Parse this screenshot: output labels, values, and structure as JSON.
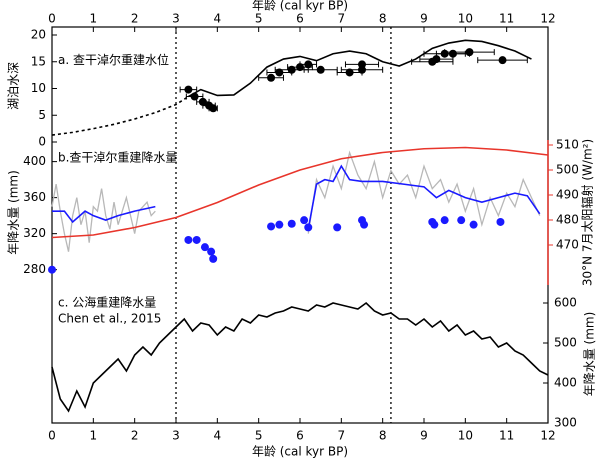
{
  "chart_data": [
    {
      "type": "line",
      "title": "a. 查干淖尔重建水位",
      "x_label": "年龄 (cal kyr BP)",
      "x_axis": "top",
      "y_label": "湖泊水深",
      "y_axis_side": "left",
      "xlim": [
        0,
        12
      ],
      "xticks": [
        0,
        1,
        2,
        3,
        4,
        5,
        6,
        7,
        8,
        9,
        10,
        11,
        12
      ],
      "ylim": [
        0,
        21
      ],
      "yticks": [
        0,
        5,
        10,
        15,
        20
      ],
      "vlines": [
        3,
        8.2
      ],
      "series": [
        {
          "style": "dashed",
          "color": "#000000",
          "x": [
            0,
            0.5,
            1,
            1.5,
            2,
            2.5,
            3,
            3.3
          ],
          "values": [
            1.3,
            1.8,
            2.5,
            3.3,
            4.3,
            5.5,
            7,
            8.5
          ]
        },
        {
          "style": "solid",
          "color": "#000000",
          "x": [
            3.3,
            3.6,
            4.0,
            4.4,
            4.8,
            5.2,
            5.6,
            6.0,
            6.4,
            6.8,
            7.2,
            7.6,
            8.0,
            8.4,
            8.8,
            9.2,
            9.6,
            10.0,
            10.4,
            10.8,
            11.2,
            11.6
          ],
          "values": [
            8.5,
            9.8,
            8.7,
            8.8,
            11,
            14,
            15.5,
            16,
            15.2,
            16.5,
            17,
            16.5,
            15,
            14.2,
            15.5,
            17.5,
            18.5,
            19,
            18.8,
            18,
            17,
            15.5
          ]
        },
        {
          "style": "points",
          "color": "#000000",
          "x": [
            3.3,
            3.45,
            3.65,
            3.8,
            3.9,
            5.3,
            5.5,
            5.8,
            6.0,
            6.2,
            6.5,
            7.2,
            7.5,
            7.5,
            9.2,
            9.3,
            9.5,
            9.7,
            10.1,
            10.9
          ],
          "values": [
            9.8,
            8.5,
            7.5,
            6.8,
            6.3,
            12,
            13,
            13.5,
            14,
            14.5,
            13.5,
            13,
            14.5,
            13.5,
            15,
            15.5,
            16.5,
            16.5,
            16.8,
            15.3
          ],
          "xerr": [
            0.2,
            0.2,
            0.15,
            0.15,
            0.1,
            0.3,
            0.3,
            0.4,
            0.3,
            0.2,
            0.4,
            0.3,
            0.4,
            0.5,
            0.5,
            0.4,
            0.5,
            0.4,
            0.6,
            0.6
          ]
        }
      ]
    },
    {
      "type": "line",
      "title": "b.查干淖尔重建降水量",
      "y_label": "年降水量 (mm)",
      "y2_label": "30°N 7月太阳辐射 (W/m²)",
      "y_axis_side": "left",
      "xlim": [
        0,
        12
      ],
      "ylim": [
        263,
        424
      ],
      "yticks": [
        280,
        320,
        360,
        400
      ],
      "y2lim": [
        454,
        512
      ],
      "y2ticks": [
        470,
        480,
        490,
        500,
        510
      ],
      "series": [
        {
          "style": "solid",
          "color": "#b8b8b8",
          "x": [
            0,
            0.1,
            0.2,
            0.3,
            0.4,
            0.5,
            0.6,
            0.7,
            0.8,
            0.9,
            1.0,
            1.1,
            1.2,
            1.3,
            1.4,
            1.5,
            1.6,
            1.7,
            1.8,
            1.9,
            2.0,
            2.1,
            2.2,
            2.3,
            2.4,
            2.5,
            4.0,
            6.2,
            6.4,
            6.6,
            6.8,
            7.0,
            7.2,
            7.4,
            7.6,
            7.8,
            8.0,
            8.2,
            8.4,
            8.6,
            8.8,
            9.0,
            9.2,
            9.4,
            9.6,
            9.8,
            10.0,
            10.2,
            10.4,
            10.6,
            10.8,
            11.0,
            11.2,
            11.4,
            11.6,
            11.8
          ],
          "values": [
            350,
            375,
            345,
            320,
            300,
            340,
            360,
            330,
            345,
            310,
            350,
            345,
            370,
            340,
            325,
            355,
            330,
            345,
            360,
            340,
            320,
            345,
            350,
            355,
            340,
            345,
            null,
            320,
            380,
            360,
            395,
            370,
            410,
            385,
            370,
            400,
            360,
            390,
            375,
            385,
            360,
            395,
            370,
            380,
            355,
            375,
            345,
            370,
            330,
            360,
            340,
            365,
            350,
            380,
            360,
            340
          ]
        },
        {
          "style": "solid",
          "color": "#1a1aff",
          "x": [
            0,
            0.3,
            0.5,
            0.8,
            1.0,
            1.3,
            1.6,
            2.0,
            2.5,
            4.0,
            6.2,
            6.4,
            6.6,
            6.8,
            7.0,
            7.2,
            7.5,
            8.0,
            8.5,
            9.0,
            9.3,
            9.6,
            10.0,
            10.4,
            10.8,
            11.2,
            11.5,
            11.8
          ],
          "values": [
            345,
            345,
            333,
            345,
            340,
            335,
            340,
            345,
            350,
            null,
            325,
            375,
            380,
            378,
            395,
            380,
            378,
            378,
            375,
            372,
            360,
            368,
            360,
            355,
            360,
            365,
            362,
            342
          ]
        },
        {
          "style": "points",
          "color": "#1a1aff",
          "x": [
            0,
            3.3,
            3.5,
            3.7,
            3.85,
            3.9,
            5.3,
            5.5,
            5.8,
            6.1,
            6.2,
            6.9,
            7.5,
            7.55,
            9.2,
            9.25,
            9.5,
            9.9,
            10.2,
            10.85
          ],
          "values": [
            280,
            313,
            313,
            305,
            300,
            292,
            328,
            330,
            331,
            335,
            327,
            327,
            335,
            330,
            333,
            330,
            335,
            335,
            330,
            333
          ]
        },
        {
          "style": "solid",
          "color": "#e8352b",
          "axis": "y2",
          "x": [
            0,
            1,
            2,
            3,
            4,
            5,
            6,
            7,
            8,
            9,
            10,
            11,
            12
          ],
          "values": [
            473,
            474,
            477,
            481,
            487,
            494,
            500,
            504.5,
            507,
            508.5,
            509,
            508,
            506
          ]
        }
      ]
    },
    {
      "type": "line",
      "title": "c. 公海重建降水量",
      "subtitle": "Chen et al., 2015",
      "x_label": "年龄 (cal kyr BP)",
      "x_axis": "bottom",
      "y_label": "年降水量 (mm)",
      "y_axis_side": "right",
      "xlim": [
        0,
        12
      ],
      "xticks": [
        0,
        1,
        2,
        3,
        4,
        5,
        6,
        7,
        8,
        9,
        10,
        11,
        12
      ],
      "ylim": [
        300,
        645
      ],
      "yticks": [
        300,
        400,
        500,
        600
      ],
      "series": [
        {
          "style": "solid",
          "color": "#000000",
          "x": [
            0,
            0.2,
            0.4,
            0.6,
            0.8,
            1.0,
            1.2,
            1.4,
            1.6,
            1.8,
            2.0,
            2.2,
            2.4,
            2.6,
            2.8,
            3.0,
            3.2,
            3.4,
            3.6,
            3.8,
            4.0,
            4.2,
            4.4,
            4.6,
            4.8,
            5.0,
            5.2,
            5.4,
            5.6,
            5.8,
            6.0,
            6.2,
            6.4,
            6.6,
            6.8,
            7.0,
            7.2,
            7.4,
            7.6,
            7.8,
            8.0,
            8.2,
            8.4,
            8.6,
            8.8,
            9.0,
            9.2,
            9.4,
            9.6,
            9.8,
            10.0,
            10.2,
            10.4,
            10.6,
            10.8,
            11.0,
            11.2,
            11.4,
            11.6,
            11.8,
            12.0
          ],
          "values": [
            440,
            360,
            330,
            380,
            340,
            400,
            420,
            440,
            460,
            430,
            470,
            490,
            470,
            500,
            520,
            540,
            560,
            530,
            550,
            545,
            520,
            540,
            530,
            560,
            550,
            570,
            565,
            575,
            580,
            590,
            585,
            580,
            595,
            590,
            600,
            595,
            590,
            585,
            600,
            580,
            570,
            575,
            560,
            560,
            545,
            560,
            540,
            555,
            530,
            545,
            520,
            530,
            510,
            515,
            490,
            500,
            480,
            470,
            450,
            430,
            420
          ]
        }
      ]
    }
  ]
}
